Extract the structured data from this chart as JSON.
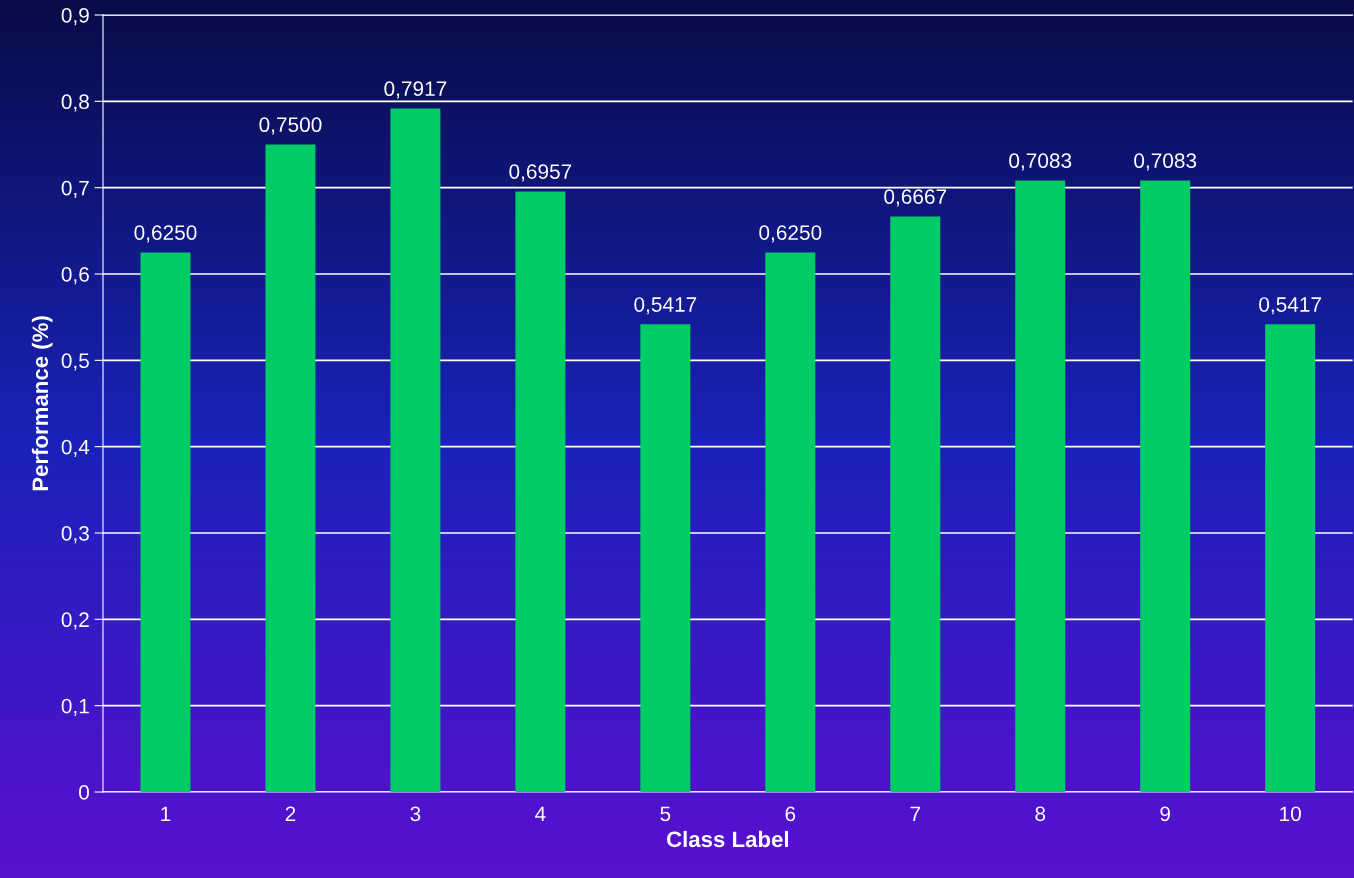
{
  "chart_data": {
    "type": "bar",
    "xlabel": "Class Label",
    "ylabel": "Performance (%)",
    "categories": [
      "1",
      "2",
      "3",
      "4",
      "5",
      "6",
      "7",
      "8",
      "9",
      "10"
    ],
    "values": [
      0.625,
      0.75,
      0.7917,
      0.6957,
      0.5417,
      0.625,
      0.6667,
      0.7083,
      0.7083,
      0.5417
    ],
    "value_labels": [
      "0,6250",
      "0,7500",
      "0,7917",
      "0,6957",
      "0,5417",
      "0,6250",
      "0,6667",
      "0,7083",
      "0,7083",
      "0,5417"
    ],
    "color": "#00cc66",
    "ylim": [
      0,
      0.9
    ],
    "yticks": [
      {
        "value": 0,
        "label": "0"
      },
      {
        "value": 0.1,
        "label": "0,1"
      },
      {
        "value": 0.2,
        "label": "0,2"
      },
      {
        "value": 0.3,
        "label": "0,3"
      },
      {
        "value": 0.4,
        "label": "0,4"
      },
      {
        "value": 0.5,
        "label": "0,5"
      },
      {
        "value": 0.6,
        "label": "0,6"
      },
      {
        "value": 0.7,
        "label": "0,7"
      },
      {
        "value": 0.8,
        "label": "0,8"
      },
      {
        "value": 0.9,
        "label": "0,9"
      }
    ],
    "grid": "y"
  }
}
